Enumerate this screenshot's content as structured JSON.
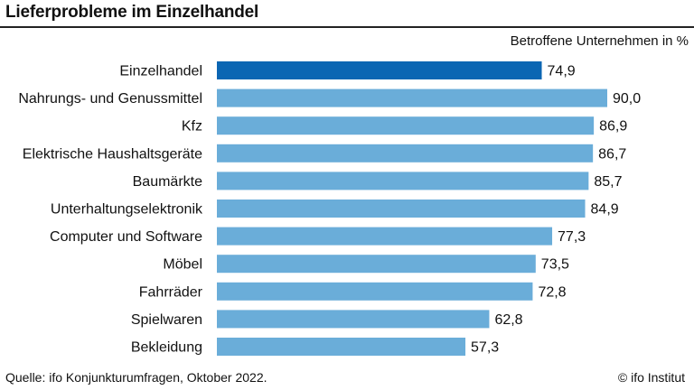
{
  "header": {
    "title": "Lieferprobleme im Einzelhandel",
    "unit_label": "Betroffene Unternehmen in %"
  },
  "footer": {
    "source": "Quelle: ifo Konjunkturumfragen, Oktober 2022.",
    "credit": "© ifo Institut"
  },
  "colors": {
    "highlight_bar": "#0b66b3",
    "bar": "#6aadd9"
  },
  "chart_data": {
    "type": "bar",
    "orientation": "horizontal",
    "title": "Lieferprobleme im Einzelhandel",
    "xlabel": "Betroffene Unternehmen in %",
    "ylabel": "",
    "xlim": [
      0,
      100
    ],
    "grid": false,
    "highlight_category": "Einzelhandel",
    "categories": [
      "Einzelhandel",
      "Nahrungs- und Genussmittel",
      "Kfz",
      "Elektrische Haushaltsgeräte",
      "Baumärkte",
      "Unterhaltungselektronik",
      "Computer und Software",
      "Möbel",
      "Fahrräder",
      "Spielwaren",
      "Bekleidung"
    ],
    "values": [
      74.9,
      90.0,
      86.9,
      86.7,
      85.7,
      84.9,
      77.3,
      73.5,
      72.8,
      62.8,
      57.3
    ],
    "value_labels": [
      "74,9",
      "90,0",
      "86,9",
      "86,7",
      "85,7",
      "84,9",
      "77,3",
      "73,5",
      "72,8",
      "62,8",
      "57,3"
    ]
  }
}
